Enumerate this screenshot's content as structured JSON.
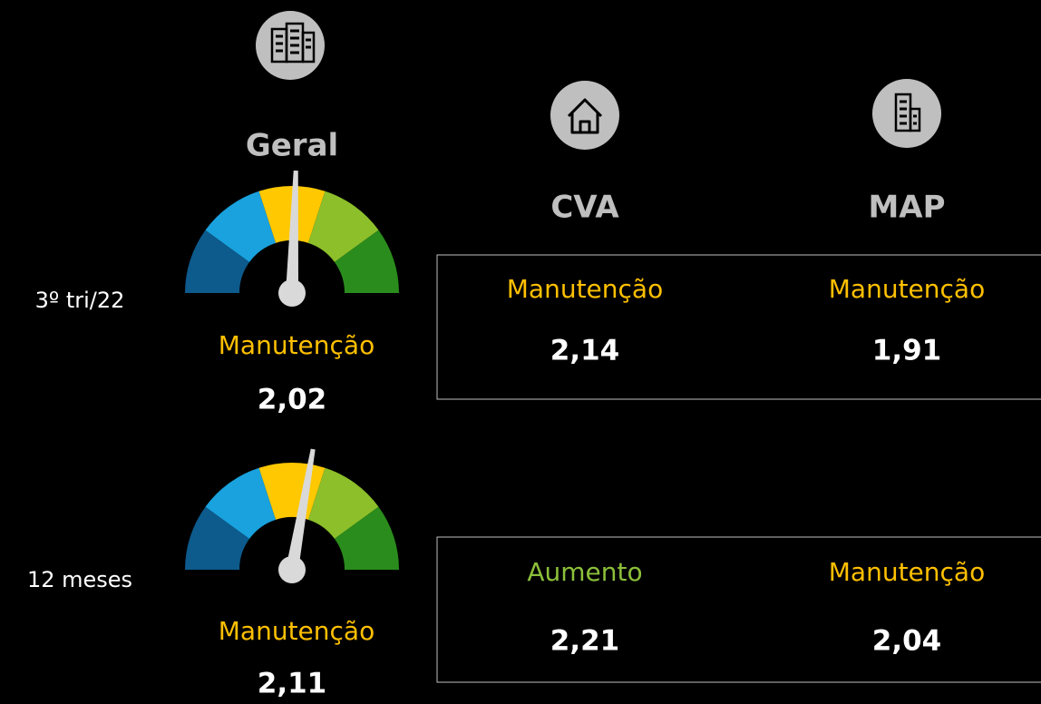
{
  "header": {
    "title": "Geral",
    "columns": [
      "CVA",
      "MAP"
    ]
  },
  "gauge_range": [
    1,
    3
  ],
  "gauge_colors": [
    "#0d5a8c",
    "#19a2dd",
    "#ffc800",
    "#8cbf2a",
    "#2a8c1c"
  ],
  "status_colors": {
    "Manutenção": "#ffc000",
    "Aumento": "#8cbf3a"
  },
  "rows": [
    {
      "label": "3º tri/22",
      "geral": {
        "status": "Manutenção",
        "value": {
          "value": 2.02,
          "label": "2,02"
        }
      },
      "cva": {
        "status": "Manutenção",
        "value": {
          "value": 2.14,
          "label": "2,14"
        }
      },
      "map": {
        "status": "Manutenção",
        "value": {
          "value": 1.91,
          "label": "1,91"
        }
      }
    },
    {
      "label": "12 meses",
      "geral": {
        "status": "Manutenção",
        "value": {
          "value": 2.11,
          "label": "2,11"
        }
      },
      "cva": {
        "status": "Aumento",
        "value": {
          "value": 2.21,
          "label": "2,21"
        }
      },
      "map": {
        "status": "Manutenção",
        "value": {
          "value": 2.04,
          "label": "2,04"
        }
      }
    }
  ]
}
